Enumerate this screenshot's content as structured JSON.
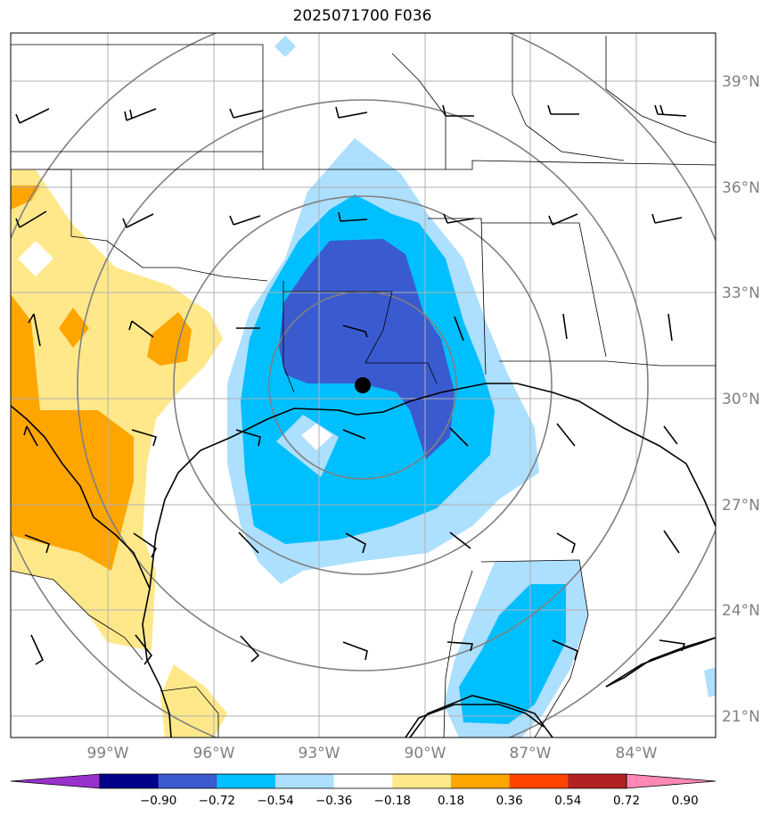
{
  "title": "2025071700 F036",
  "lat_labels": [
    "39°N",
    "36°N",
    "33°N",
    "30°N",
    "27°N",
    "24°N",
    "21°N"
  ],
  "lon_labels": [
    "99°W",
    "96°W",
    "93°W",
    "90°W",
    "87°W",
    "84°W"
  ],
  "colorbar": {
    "labels": [
      "−0.90",
      "−0.72",
      "−0.54",
      "−0.36",
      "−0.18",
      "0.18",
      "0.36",
      "0.54",
      "0.72",
      "0.90"
    ],
    "colors": [
      "#9932cc",
      "#00008b",
      "#3a5bd0",
      "#00bfff",
      "#addfff",
      "#ffffff",
      "#ffe88a",
      "#ffa500",
      "#ff4500",
      "#b22222",
      "#ff88b4"
    ]
  },
  "center_marker": "storm-center-dot"
}
